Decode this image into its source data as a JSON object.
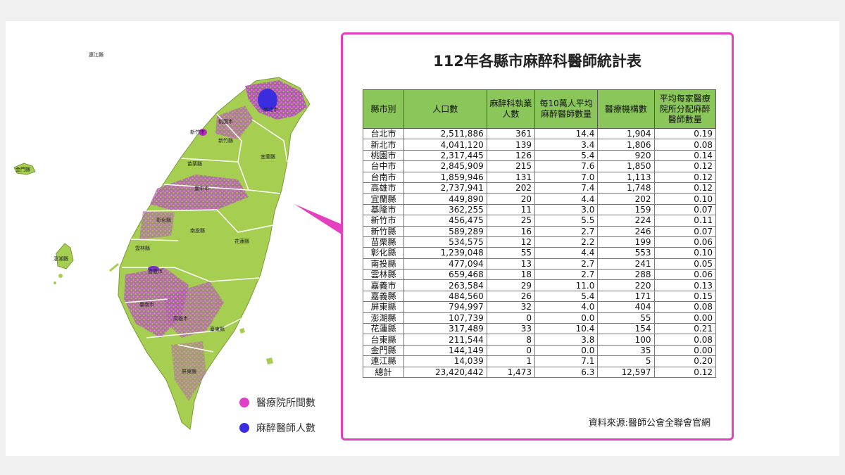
{
  "chart_data": {
    "type": "table",
    "title": "112年各縣市麻醉科醫師統計表",
    "columns": [
      "縣市別",
      "人口數",
      "麻醉科執業人數",
      "每10萬人平均麻醉醫師數量",
      "醫療機構數",
      "平均每家醫療院所分配麻醉醫師數量"
    ],
    "rows": [
      [
        "台北市",
        "2,511,886",
        "361",
        "14.4",
        "1,904",
        "0.19"
      ],
      [
        "新北市",
        "4,041,120",
        "139",
        "3.4",
        "1,806",
        "0.08"
      ],
      [
        "桃園市",
        "2,317,445",
        "126",
        "5.4",
        "920",
        "0.14"
      ],
      [
        "台中市",
        "2,845,909",
        "215",
        "7.6",
        "1,850",
        "0.12"
      ],
      [
        "台南市",
        "1,859,946",
        "131",
        "7.0",
        "1,113",
        "0.12"
      ],
      [
        "高雄市",
        "2,737,941",
        "202",
        "7.4",
        "1,748",
        "0.12"
      ],
      [
        "宜蘭縣",
        "449,890",
        "20",
        "4.4",
        "202",
        "0.10"
      ],
      [
        "基隆市",
        "362,255",
        "11",
        "3.0",
        "159",
        "0.07"
      ],
      [
        "新竹市",
        "456,475",
        "25",
        "5.5",
        "224",
        "0.11"
      ],
      [
        "新竹縣",
        "589,289",
        "16",
        "2.7",
        "246",
        "0.07"
      ],
      [
        "苗栗縣",
        "534,575",
        "12",
        "2.2",
        "199",
        "0.06"
      ],
      [
        "彰化縣",
        "1,239,048",
        "55",
        "4.4",
        "553",
        "0.10"
      ],
      [
        "南投縣",
        "477,094",
        "13",
        "2.7",
        "241",
        "0.05"
      ],
      [
        "雲林縣",
        "659,468",
        "18",
        "2.7",
        "288",
        "0.06"
      ],
      [
        "嘉義市",
        "263,584",
        "29",
        "11.0",
        "220",
        "0.13"
      ],
      [
        "嘉義縣",
        "484,560",
        "26",
        "5.4",
        "171",
        "0.15"
      ],
      [
        "屏東縣",
        "794,997",
        "32",
        "4.0",
        "404",
        "0.08"
      ],
      [
        "澎湖縣",
        "107,739",
        "0",
        "0.0",
        "55",
        "0.00"
      ],
      [
        "花蓮縣",
        "317,489",
        "33",
        "10.4",
        "154",
        "0.21"
      ],
      [
        "台東縣",
        "211,544",
        "8",
        "3.8",
        "100",
        "0.08"
      ],
      [
        "金門縣",
        "144,149",
        "0",
        "0.0",
        "35",
        "0.00"
      ],
      [
        "連江縣",
        "14,039",
        "1",
        "7.1",
        "5",
        "0.20"
      ],
      [
        "總計",
        "23,420,442",
        "1,473",
        "6.3",
        "12,597",
        "0.12"
      ]
    ]
  },
  "map": {
    "labels": [
      "連江縣",
      "金門縣",
      "澎湖縣",
      "新北市",
      "桃園市",
      "新竹市",
      "新竹縣",
      "苗栗縣",
      "宜蘭縣",
      "臺中市",
      "彰化縣",
      "南投縣",
      "花蓮縣",
      "雲林縣",
      "嘉義市",
      "臺南市",
      "高雄市",
      "臺東縣",
      "屏東縣"
    ],
    "legend": [
      {
        "label": "醫療院所間數",
        "color": "#e040c8"
      },
      {
        "label": "麻醉醫師人數",
        "color": "#3a2de0"
      }
    ]
  },
  "source": "資料來源:醫師公會全聯會官網",
  "colors": {
    "panel_border": "#e43fbf",
    "header_bg": "#8bc65a",
    "land": "#a6cf52"
  }
}
